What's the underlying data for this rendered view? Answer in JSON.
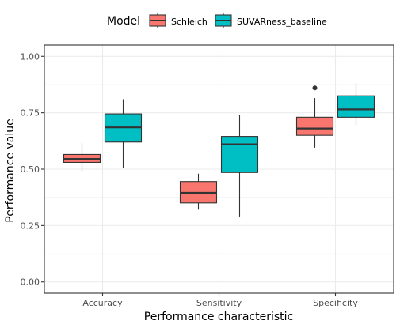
{
  "chart_data": {
    "type": "boxplot",
    "title": "",
    "xlabel": "Performance characteristic",
    "ylabel": "Performance value",
    "ylim": [
      -0.05,
      1.05
    ],
    "yticks": [
      0.0,
      0.25,
      0.5,
      0.75,
      1.0
    ],
    "ytick_labels": [
      "0.00",
      "0.25",
      "0.50",
      "0.75",
      "1.00"
    ],
    "grid": true,
    "legend": {
      "title": "Model",
      "position": "top"
    },
    "categories": [
      "Accuracy",
      "Sensitivity",
      "Specificity"
    ],
    "series": [
      {
        "name": "Schleich",
        "color": "#F8766D",
        "boxes": [
          {
            "min": 0.49,
            "q1": 0.53,
            "median": 0.545,
            "q3": 0.565,
            "max": 0.615,
            "outliers": []
          },
          {
            "min": 0.32,
            "q1": 0.35,
            "median": 0.395,
            "q3": 0.445,
            "max": 0.48,
            "outliers": []
          },
          {
            "min": 0.595,
            "q1": 0.65,
            "median": 0.68,
            "q3": 0.73,
            "max": 0.815,
            "outliers": [
              0.86
            ]
          }
        ]
      },
      {
        "name": "SUVARness_baseline",
        "color": "#00BFC4",
        "boxes": [
          {
            "min": 0.505,
            "q1": 0.62,
            "median": 0.685,
            "q3": 0.745,
            "max": 0.81,
            "outliers": []
          },
          {
            "min": 0.29,
            "q1": 0.485,
            "median": 0.61,
            "q3": 0.645,
            "max": 0.74,
            "outliers": []
          },
          {
            "min": 0.695,
            "q1": 0.73,
            "median": 0.765,
            "q3": 0.825,
            "max": 0.88,
            "outliers": []
          }
        ]
      }
    ]
  }
}
